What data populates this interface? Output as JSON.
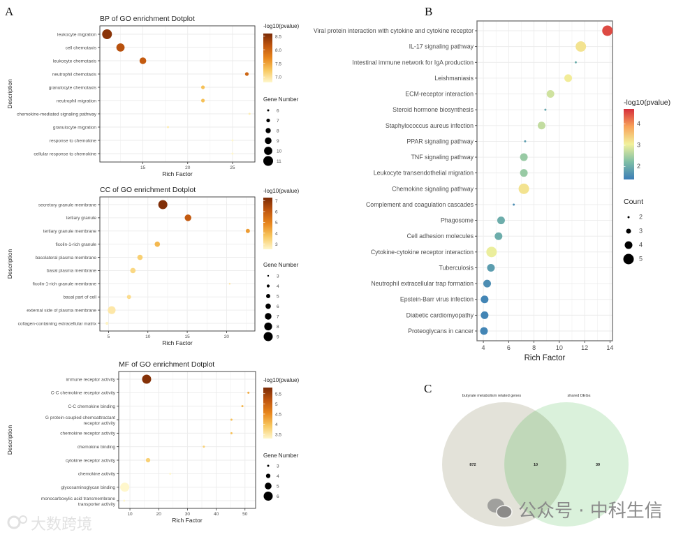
{
  "panel_letters": {
    "a": "A",
    "b": "B",
    "c": "C"
  },
  "watermarks": {
    "wechat": "公众号 · 中科生信",
    "corner": "大数跨境"
  },
  "chart_data": [
    {
      "id": "bp",
      "type": "scatter",
      "title": "BP of GO enrichment Dotplot",
      "xlabel": "Rich Factor",
      "ylabel": "Description",
      "xlim": [
        10.2,
        27.5
      ],
      "xticks": [
        15,
        20,
        25
      ],
      "color_legend": {
        "title": "-log10(pvalue)",
        "range": [
          6.8,
          8.6
        ],
        "ticks": [
          8.5,
          8.0,
          7.5,
          7.0
        ]
      },
      "size_legend": {
        "title": "Gene Number",
        "values": [
          6,
          7,
          8,
          9,
          10,
          11
        ]
      },
      "points": [
        {
          "term": "leukocyte migration",
          "rich_factor": 11.0,
          "count": 11,
          "neglog10p": 8.5
        },
        {
          "term": "cell chemotaxis",
          "rich_factor": 12.5,
          "count": 10,
          "neglog10p": 8.2
        },
        {
          "term": "leukocyte chemotaxis",
          "rich_factor": 15.0,
          "count": 9,
          "neglog10p": 8.1
        },
        {
          "term": "neutrophil chemotaxis",
          "rich_factor": 26.6,
          "count": 7,
          "neglog10p": 8.0
        },
        {
          "term": "granulocyte chemotaxis",
          "rich_factor": 21.7,
          "count": 7,
          "neglog10p": 7.3
        },
        {
          "term": "neutrophil migration",
          "rich_factor": 21.7,
          "count": 7,
          "neglog10p": 7.3
        },
        {
          "term": "chemokine-mediated signaling pathway",
          "rich_factor": 26.9,
          "count": 6,
          "neglog10p": 6.9
        },
        {
          "term": "granulocyte migration",
          "rich_factor": 17.8,
          "count": 6,
          "neglog10p": 6.9
        },
        {
          "term": "response to chemokine",
          "rich_factor": 25.0,
          "count": 6,
          "neglog10p": 6.8
        },
        {
          "term": "cellular response to chemokine",
          "rich_factor": 25.0,
          "count": 6,
          "neglog10p": 6.8
        }
      ]
    },
    {
      "id": "cc",
      "type": "scatter",
      "title": "CC of GO enrichment Dotplot",
      "xlabel": "Rich Factor",
      "ylabel": "Description",
      "xlim": [
        3.9,
        23.6
      ],
      "xticks": [
        5,
        10,
        15,
        20
      ],
      "color_legend": {
        "title": "-log10(pvalue)",
        "range": [
          2.5,
          7.3
        ],
        "ticks": [
          7,
          6,
          5,
          4,
          3
        ]
      },
      "size_legend": {
        "title": "Gene Number",
        "values": [
          3,
          4,
          5,
          6,
          7,
          8,
          9
        ]
      },
      "points": [
        {
          "term": "secretory granule membrane",
          "rich_factor": 11.9,
          "count": 9,
          "neglog10p": 7.2
        },
        {
          "term": "tertiary granule",
          "rich_factor": 15.1,
          "count": 7,
          "neglog10p": 6.0
        },
        {
          "term": "tertiary granule membrane",
          "rich_factor": 22.7,
          "count": 5,
          "neglog10p": 4.5
        },
        {
          "term": "ficolin-1-rich granule",
          "rich_factor": 11.2,
          "count": 6,
          "neglog10p": 4.0
        },
        {
          "term": "basolateral plasma membrane",
          "rich_factor": 9.0,
          "count": 6,
          "neglog10p": 3.5
        },
        {
          "term": "basal plasma membrane",
          "rich_factor": 8.1,
          "count": 6,
          "neglog10p": 3.3
        },
        {
          "term": "ficolin-1-rich granule membrane",
          "rich_factor": 20.4,
          "count": 3,
          "neglog10p": 3.0
        },
        {
          "term": "basal part of cell",
          "rich_factor": 7.6,
          "count": 5,
          "neglog10p": 3.2
        },
        {
          "term": "external side of plasma membrane",
          "rich_factor": 5.4,
          "count": 8,
          "neglog10p": 2.9
        },
        {
          "term": "collagen-containing extracellular matrix",
          "rich_factor": 4.8,
          "count": 4,
          "neglog10p": 2.6
        }
      ]
    },
    {
      "id": "mf",
      "type": "scatter",
      "title": "MF of GO enrichment Dotplot",
      "xlabel": "Rich Factor",
      "ylabel": "Description",
      "xlim": [
        6.1,
        53.7
      ],
      "xticks": [
        10,
        20,
        30,
        40,
        50
      ],
      "color_legend": {
        "title": "-log10(pvalue)",
        "range": [
          3.3,
          5.8
        ],
        "ticks": [
          5.5,
          5.0,
          4.5,
          4.0,
          3.5
        ]
      },
      "size_legend": {
        "title": "Gene Number",
        "values": [
          3,
          4,
          5,
          6
        ]
      },
      "points": [
        {
          "term": "immune receptor activity",
          "rich_factor": 15.8,
          "count": 6,
          "neglog10p": 5.7
        },
        {
          "term": "C-C chemokine receptor activity",
          "rich_factor": 51.2,
          "count": 3,
          "neglog10p": 4.2
        },
        {
          "term": "C-C chemokine binding",
          "rich_factor": 49.1,
          "count": 3,
          "neglog10p": 4.1
        },
        {
          "term": "G protein-coupled chemoattractant receptor activity",
          "rich_factor": 45.3,
          "count": 3,
          "neglog10p": 4.0
        },
        {
          "term": "chemokine receptor activity",
          "rich_factor": 45.3,
          "count": 3,
          "neglog10p": 4.0
        },
        {
          "term": "chemokine binding",
          "rich_factor": 35.7,
          "count": 3,
          "neglog10p": 3.8
        },
        {
          "term": "cytokine receptor activity",
          "rich_factor": 16.3,
          "count": 4,
          "neglog10p": 3.8
        },
        {
          "term": "chemokine activity",
          "rich_factor": 24.0,
          "count": 3,
          "neglog10p": 3.3
        },
        {
          "term": "glycosaminoglycan binding",
          "rich_factor": 8.2,
          "count": 6,
          "neglog10p": 3.3
        },
        {
          "term": "monocarboxylic acid transmembrane transporter activity",
          "rich_factor": 8.0,
          "count": 3,
          "neglog10p": 3.2
        }
      ]
    },
    {
      "id": "kegg",
      "type": "scatter",
      "title": "",
      "xlabel": "Rich Factor",
      "ylabel": "",
      "xlim": [
        3.5,
        14.2
      ],
      "xticks": [
        4,
        6,
        8,
        10,
        12,
        14
      ],
      "color_legend": {
        "title": "-log10(pvalue)",
        "range": [
          1.4,
          4.7
        ],
        "ticks": [
          4,
          3,
          2
        ]
      },
      "size_legend": {
        "title": "Count",
        "values": [
          2,
          3,
          4,
          5
        ]
      },
      "points": [
        {
          "term": "Viral protein interaction with cytokine and cytokine receptor",
          "rich_factor": 13.8,
          "count": 5,
          "neglog10p": 4.5
        },
        {
          "term": "IL-17 signaling pathway",
          "rich_factor": 11.7,
          "count": 5,
          "neglog10p": 3.2
        },
        {
          "term": "Intestinal immune network for IgA production",
          "rich_factor": 11.3,
          "count": 2,
          "neglog10p": 2.0
        },
        {
          "term": "Leishmaniasis",
          "rich_factor": 10.7,
          "count": 4,
          "neglog10p": 3.1
        },
        {
          "term": "ECM-receptor interaction",
          "rich_factor": 9.3,
          "count": 4,
          "neglog10p": 2.8
        },
        {
          "term": "Steroid hormone biosynthesis",
          "rich_factor": 8.9,
          "count": 2,
          "neglog10p": 1.9
        },
        {
          "term": "Staphylococcus aureus infection",
          "rich_factor": 8.6,
          "count": 4,
          "neglog10p": 2.7
        },
        {
          "term": "PPAR signaling pathway",
          "rich_factor": 7.3,
          "count": 2,
          "neglog10p": 1.8
        },
        {
          "term": "TNF signaling pathway",
          "rich_factor": 7.2,
          "count": 4,
          "neglog10p": 2.4
        },
        {
          "term": "Leukocyte transendothelial migration",
          "rich_factor": 7.2,
          "count": 4,
          "neglog10p": 2.4
        },
        {
          "term": "Chemokine signaling pathway",
          "rich_factor": 7.2,
          "count": 5,
          "neglog10p": 3.2
        },
        {
          "term": "Complement and coagulation cascades",
          "rich_factor": 6.4,
          "count": 2,
          "neglog10p": 1.6
        },
        {
          "term": "Phagosome",
          "rich_factor": 5.4,
          "count": 4,
          "neglog10p": 2.0
        },
        {
          "term": "Cell adhesion molecules",
          "rich_factor": 5.2,
          "count": 4,
          "neglog10p": 2.0
        },
        {
          "term": "Cytokine-cytokine receptor interaction",
          "rich_factor": 4.65,
          "count": 5,
          "neglog10p": 3.0
        },
        {
          "term": "Tuberculosis",
          "rich_factor": 4.6,
          "count": 4,
          "neglog10p": 1.8
        },
        {
          "term": "Neutrophil extracellular trap formation",
          "rich_factor": 4.3,
          "count": 4,
          "neglog10p": 1.6
        },
        {
          "term": "Epstein-Barr virus infection",
          "rich_factor": 4.1,
          "count": 4,
          "neglog10p": 1.5
        },
        {
          "term": "Diabetic cardiomyopathy",
          "rich_factor": 4.1,
          "count": 4,
          "neglog10p": 1.5
        },
        {
          "term": "Proteoglycans in cancer",
          "rich_factor": 4.05,
          "count": 4,
          "neglog10p": 1.5
        }
      ]
    },
    {
      "id": "venn",
      "type": "venn",
      "sets": [
        {
          "name": "butyrate metabolism related genes",
          "only": 872,
          "color": "#d9d8cc"
        },
        {
          "name": "shared DEGs",
          "only": 39,
          "color": "#cdeccf"
        }
      ],
      "intersection": 10
    }
  ],
  "colors": {
    "go_scale": [
      "#fff7cc",
      "#f8c860",
      "#e8861c",
      "#c0560f",
      "#7a2a06"
    ],
    "kegg_scale": [
      "#3b7db7",
      "#80bfa6",
      "#f2f19c",
      "#f8a35a",
      "#d52e3c"
    ]
  }
}
